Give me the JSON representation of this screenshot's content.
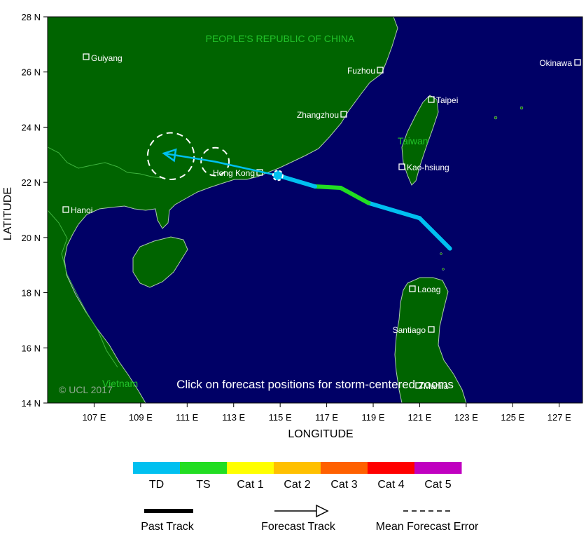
{
  "map": {
    "regions": {
      "china": "PEOPLE'S REPUBLIC OF CHINA",
      "taiwan": "Taiwan",
      "vietnam": "Vietnam"
    },
    "cities": {
      "guiyang": "Guiyang",
      "fuzhou": "Fuzhou",
      "okinawa": "Okinawa",
      "taipei": "Taipei",
      "zhangzhou": "Zhangzhou",
      "hongkong": "Hong Kong",
      "kaohsiung": "Kao-hsiung",
      "hanoi": "Hanoi",
      "laoag": "Laoag",
      "santiago": "Santiago",
      "manila": "Manila"
    },
    "note": "Click on forecast positions for storm-centered zooms",
    "copyright": "© UCL 2017",
    "colors": {
      "ocean": "#000066",
      "land": "#006400",
      "border": "#3fb43f",
      "region_text": "#22c32a",
      "city_text": "#ffffff"
    }
  },
  "axes": {
    "xlabel": "LONGITUDE",
    "ylabel": "LATITUDE",
    "xticks": [
      "107 E",
      "109 E",
      "111 E",
      "113 E",
      "115 E",
      "117 E",
      "119 E",
      "121 E",
      "123 E",
      "125 E",
      "127 E"
    ],
    "yticks": [
      "28 N",
      "26 N",
      "24 N",
      "22 N",
      "20 N",
      "18 N",
      "16 N",
      "14 N"
    ],
    "lon_range": [
      105,
      128
    ],
    "lat_range": [
      14,
      28
    ]
  },
  "track": {
    "past": [
      {
        "lon": 122.3,
        "lat": 19.6,
        "cat": "TD"
      },
      {
        "lon": 121.0,
        "lat": 20.7,
        "cat": "TD"
      },
      {
        "lon": 118.8,
        "lat": 21.25,
        "cat": "TS"
      },
      {
        "lon": 117.6,
        "lat": 21.8,
        "cat": "TS"
      },
      {
        "lon": 116.5,
        "lat": 21.85,
        "cat": "TD"
      },
      {
        "lon": 114.9,
        "lat": 22.25,
        "cat": "TD"
      }
    ],
    "current": {
      "lon": 114.9,
      "lat": 22.25
    },
    "forecast": [
      {
        "lon": 114.9,
        "lat": 22.25
      },
      {
        "lon": 112.2,
        "lat": 22.75
      },
      {
        "lon": 110.0,
        "lat": 23.05
      }
    ],
    "error_circles": [
      {
        "lon": 112.2,
        "lat": 22.75,
        "radius_deg": 0.6
      },
      {
        "lon": 110.3,
        "lat": 22.95,
        "radius_deg": 1.0
      }
    ]
  },
  "legend": {
    "categories": [
      {
        "label": "TD",
        "color": "#00c0f0"
      },
      {
        "label": "TS",
        "color": "#22dd22"
      },
      {
        "label": "Cat 1",
        "color": "#ffff00"
      },
      {
        "label": "Cat 2",
        "color": "#ffc000"
      },
      {
        "label": "Cat 3",
        "color": "#ff6000"
      },
      {
        "label": "Cat 4",
        "color": "#ff0000"
      },
      {
        "label": "Cat 5",
        "color": "#c000c0"
      }
    ],
    "past_track": "Past Track",
    "forecast_track": "Forecast Track",
    "mean_error": "Mean Forecast Error"
  }
}
